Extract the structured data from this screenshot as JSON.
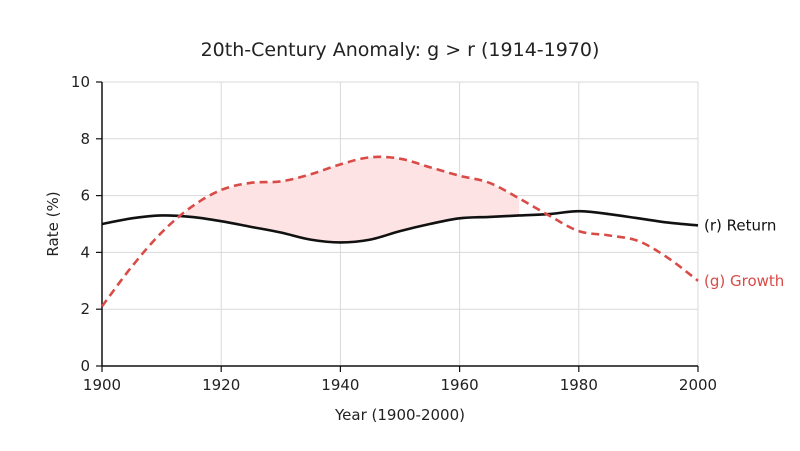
{
  "chart_data": {
    "type": "line",
    "title": "20th-Century Anomaly: g > r (1914-1970)",
    "xlabel": "Year (1900-2000)",
    "ylabel": "Rate (%)",
    "xlim": [
      1900,
      2000
    ],
    "ylim": [
      0,
      10
    ],
    "x_ticks": [
      1900,
      1920,
      1940,
      1960,
      1980,
      2000
    ],
    "y_ticks": [
      0,
      2,
      4,
      6,
      8,
      10
    ],
    "grid": true,
    "shaded_region": {
      "x_start": 1914,
      "x_end": 1970,
      "condition": "g > r",
      "color": "#fde3e3"
    },
    "series": [
      {
        "name": "(r) Return",
        "color": "#111111",
        "style": "solid",
        "x": [
          1900,
          1905,
          1910,
          1915,
          1920,
          1925,
          1930,
          1935,
          1940,
          1945,
          1950,
          1955,
          1960,
          1965,
          1970,
          1975,
          1980,
          1985,
          1990,
          1995,
          2000
        ],
        "values": [
          5.0,
          5.2,
          5.3,
          5.25,
          5.1,
          4.9,
          4.7,
          4.45,
          4.35,
          4.45,
          4.75,
          5.0,
          5.2,
          5.25,
          5.3,
          5.35,
          5.45,
          5.35,
          5.2,
          5.05,
          4.95
        ]
      },
      {
        "name": "(g) Growth",
        "color": "#d94b47",
        "style": "dashed",
        "x": [
          1900,
          1905,
          1910,
          1915,
          1920,
          1925,
          1930,
          1935,
          1940,
          1945,
          1950,
          1955,
          1960,
          1965,
          1970,
          1975,
          1980,
          1985,
          1990,
          1995,
          2000
        ],
        "values": [
          2.1,
          3.5,
          4.7,
          5.6,
          6.2,
          6.45,
          6.5,
          6.75,
          7.1,
          7.35,
          7.3,
          7.0,
          6.7,
          6.45,
          5.9,
          5.3,
          4.75,
          4.6,
          4.4,
          3.8,
          3.0
        ]
      }
    ]
  }
}
